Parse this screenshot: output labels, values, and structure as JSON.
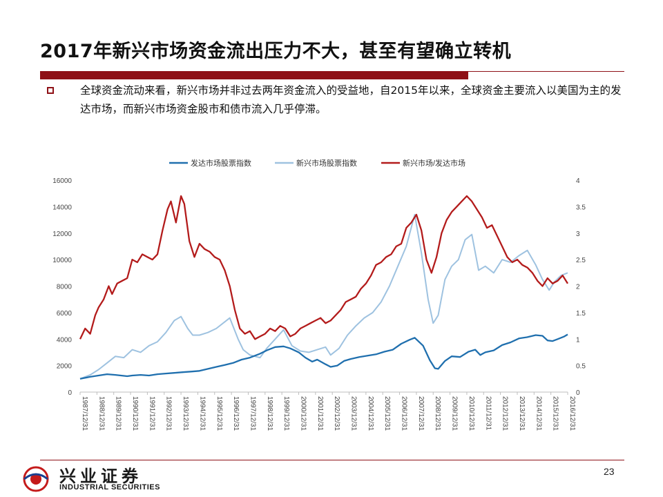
{
  "slide": {
    "title": "2017年新兴市场资金流出压力不大，甚至有望确立转机",
    "bullet": "全球资金流动来看，新兴市场并非过去两年资金流入的受益地，自2015年以来，全球资金主要流入以美国为主的发达市场，而新兴市场资金股市和债市流入几乎停滞。",
    "page_number": "23"
  },
  "logo": {
    "name_cn": "兴业证券",
    "name_en": "INDUSTRIAL SECURITIES"
  },
  "colors": {
    "accent": "#8e1016",
    "developed": "#1f6fae",
    "emerging": "#9ec2e0",
    "ratio": "#b31b1b"
  },
  "chart_data": {
    "type": "line",
    "title": "",
    "legend": [
      "发达市场股票指数",
      "新兴市场股票指数",
      "新兴市场/发达市场"
    ],
    "legend_position": "top",
    "x_ticks": [
      "1987/12/31",
      "1988/12/31",
      "1989/12/31",
      "1990/12/31",
      "1991/12/31",
      "1992/12/31",
      "1993/12/31",
      "1994/12/31",
      "1995/12/31",
      "1996/12/31",
      "1997/12/31",
      "1998/12/31",
      "1999/12/31",
      "2000/12/31",
      "2001/12/31",
      "2002/12/31",
      "2003/12/31",
      "2004/12/31",
      "2005/12/31",
      "2006/12/31",
      "2007/12/31",
      "2008/12/31",
      "2009/12/31",
      "2010/12/31",
      "2011/12/31",
      "2012/12/31",
      "2013/12/31",
      "2014/12/31",
      "2015/12/31",
      "2016/12/31"
    ],
    "y_left": {
      "min": 0,
      "max": 16000,
      "ticks": [
        0,
        2000,
        4000,
        6000,
        8000,
        10000,
        12000,
        14000,
        16000
      ]
    },
    "y_right": {
      "min": 0,
      "max": 4,
      "ticks": [
        "0",
        "0.5",
        "1",
        "1.5",
        "2",
        "2.5",
        "3",
        "3.5",
        "4"
      ]
    },
    "series": [
      {
        "name": "发达市场股票指数",
        "axis": "left",
        "x": [
          1987.9,
          1988.5,
          1989.0,
          1989.5,
          1990.0,
          1990.7,
          1991.0,
          1991.5,
          1992.0,
          1992.5,
          1993.0,
          1993.5,
          1994.0,
          1994.5,
          1995.0,
          1995.5,
          1996.0,
          1996.5,
          1997.0,
          1997.5,
          1998.0,
          1998.6,
          1999.0,
          1999.5,
          2000.0,
          2000.4,
          2000.9,
          2001.3,
          2001.7,
          2002.0,
          2002.5,
          2002.8,
          2003.2,
          2003.6,
          2004.0,
          2004.5,
          2005.0,
          2005.5,
          2006.0,
          2006.5,
          2007.0,
          2007.5,
          2007.8,
          2008.3,
          2008.7,
          2009.0,
          2009.2,
          2009.6,
          2010.0,
          2010.5,
          2011.0,
          2011.4,
          2011.7,
          2012.0,
          2012.5,
          2013.0,
          2013.5,
          2014.0,
          2014.5,
          2015.0,
          2015.4,
          2015.7,
          2016.0,
          2016.3,
          2016.7,
          2016.9
        ],
        "values": [
          1000,
          1150,
          1250,
          1350,
          1300,
          1200,
          1250,
          1300,
          1250,
          1350,
          1400,
          1450,
          1500,
          1550,
          1600,
          1750,
          1900,
          2050,
          2200,
          2450,
          2600,
          2900,
          3150,
          3400,
          3450,
          3300,
          3000,
          2600,
          2300,
          2450,
          2100,
          1900,
          2000,
          2350,
          2500,
          2650,
          2750,
          2850,
          3050,
          3200,
          3650,
          3950,
          4100,
          3500,
          2400,
          1800,
          1750,
          2350,
          2700,
          2650,
          3050,
          3200,
          2800,
          3000,
          3150,
          3550,
          3750,
          4050,
          4150,
          4300,
          4250,
          3900,
          3850,
          4000,
          4200,
          4350
        ]
      },
      {
        "name": "新兴市场股票指数",
        "axis": "left",
        "x": [
          1987.9,
          1988.5,
          1989.0,
          1989.5,
          1990.0,
          1990.5,
          1991.0,
          1991.5,
          1992.0,
          1992.5,
          1993.0,
          1993.5,
          1993.9,
          1994.3,
          1994.6,
          1995.0,
          1995.5,
          1996.0,
          1996.5,
          1996.8,
          1997.3,
          1997.6,
          1998.0,
          1998.6,
          1999.0,
          1999.5,
          2000.0,
          2000.5,
          2001.0,
          2001.5,
          2002.0,
          2002.5,
          2002.8,
          2003.3,
          2003.8,
          2004.3,
          2004.8,
          2005.3,
          2005.8,
          2006.3,
          2006.8,
          2007.3,
          2007.8,
          2008.2,
          2008.6,
          2008.9,
          2009.2,
          2009.6,
          2010.0,
          2010.4,
          2010.8,
          2011.2,
          2011.6,
          2012.0,
          2012.5,
          2013.0,
          2013.5,
          2014.0,
          2014.5,
          2015.0,
          2015.4,
          2015.8,
          2016.1,
          2016.5,
          2016.9
        ],
        "values": [
          1000,
          1300,
          1700,
          2200,
          2700,
          2600,
          3200,
          3000,
          3500,
          3800,
          4500,
          5400,
          5700,
          4800,
          4300,
          4300,
          4500,
          4800,
          5300,
          5600,
          4000,
          3200,
          2800,
          2600,
          3300,
          4000,
          4700,
          3500,
          3100,
          3000,
          3200,
          3400,
          2800,
          3300,
          4300,
          5000,
          5600,
          6000,
          6800,
          8000,
          9500,
          11000,
          13400,
          10500,
          7000,
          5200,
          5800,
          8500,
          9500,
          10000,
          11500,
          11900,
          9200,
          9500,
          9000,
          10000,
          9800,
          10300,
          10700,
          9600,
          8500,
          7700,
          8300,
          8800,
          9000
        ]
      },
      {
        "name": "新兴市场/发达市场",
        "axis": "right",
        "x": [
          1987.9,
          1988.2,
          1988.5,
          1988.8,
          1989.0,
          1989.3,
          1989.6,
          1989.8,
          1990.1,
          1990.4,
          1990.7,
          1991.0,
          1991.3,
          1991.6,
          1991.9,
          1992.2,
          1992.5,
          1992.8,
          1993.1,
          1993.3,
          1993.6,
          1993.9,
          1994.1,
          1994.4,
          1994.7,
          1995.0,
          1995.3,
          1995.6,
          1995.9,
          1996.2,
          1996.5,
          1996.8,
          1997.1,
          1997.4,
          1997.7,
          1998.0,
          1998.3,
          1998.6,
          1998.9,
          1999.2,
          1999.5,
          1999.8,
          2000.1,
          2000.4,
          2000.7,
          2001.0,
          2001.3,
          2001.6,
          2001.9,
          2002.2,
          2002.5,
          2002.8,
          2003.1,
          2003.4,
          2003.7,
          2004.0,
          2004.3,
          2004.6,
          2004.9,
          2005.2,
          2005.5,
          2005.8,
          2006.1,
          2006.4,
          2006.7,
          2007.0,
          2007.3,
          2007.6,
          2007.9,
          2008.2,
          2008.5,
          2008.8,
          2009.1,
          2009.4,
          2009.7,
          2010.0,
          2010.3,
          2010.6,
          2010.9,
          2011.2,
          2011.5,
          2011.8,
          2012.1,
          2012.4,
          2012.7,
          2013.0,
          2013.3,
          2013.6,
          2013.9,
          2014.2,
          2014.5,
          2014.8,
          2015.1,
          2015.4,
          2015.7,
          2016.0,
          2016.3,
          2016.6,
          2016.9
        ],
        "values": [
          1.0,
          1.2,
          1.1,
          1.45,
          1.6,
          1.75,
          2.0,
          1.85,
          2.05,
          2.1,
          2.15,
          2.5,
          2.45,
          2.6,
          2.55,
          2.5,
          2.6,
          3.05,
          3.45,
          3.6,
          3.2,
          3.7,
          3.55,
          2.85,
          2.55,
          2.8,
          2.7,
          2.65,
          2.55,
          2.5,
          2.3,
          2.0,
          1.55,
          1.2,
          1.1,
          1.15,
          1.0,
          1.05,
          1.1,
          1.2,
          1.15,
          1.25,
          1.2,
          1.05,
          1.1,
          1.2,
          1.25,
          1.3,
          1.35,
          1.4,
          1.3,
          1.35,
          1.45,
          1.55,
          1.7,
          1.75,
          1.8,
          1.95,
          2.05,
          2.2,
          2.4,
          2.45,
          2.55,
          2.6,
          2.75,
          2.8,
          3.1,
          3.2,
          3.35,
          3.05,
          2.5,
          2.25,
          2.55,
          3.0,
          3.25,
          3.4,
          3.5,
          3.6,
          3.7,
          3.6,
          3.45,
          3.3,
          3.1,
          3.15,
          2.95,
          2.75,
          2.55,
          2.45,
          2.5,
          2.4,
          2.35,
          2.25,
          2.1,
          2.0,
          2.15,
          2.05,
          2.1,
          2.2,
          2.05
        ]
      }
    ],
    "x_range": [
      1987.9,
      2016.9
    ]
  }
}
